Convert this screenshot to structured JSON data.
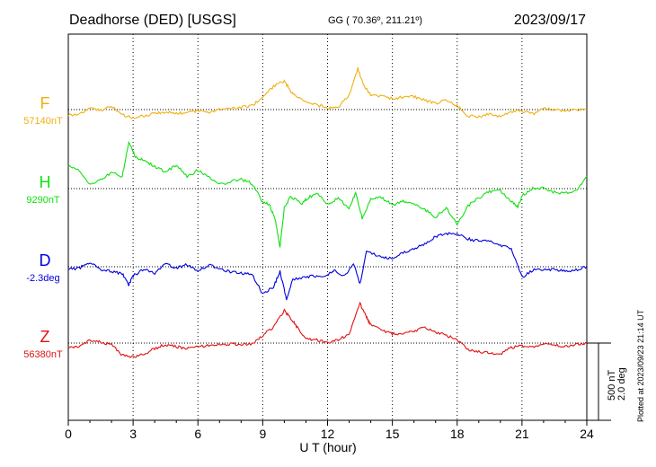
{
  "header": {
    "station": "Deadhorse (DED)  [USGS]",
    "coords": "GG ( 70.36º, 211.21º)",
    "date": "2023/09/17"
  },
  "plotted_note": "Plotted at 2023/09/23 21:14 UT",
  "scale_bar": {
    "value_nt": "500 nT",
    "value_deg": "2.0 deg"
  },
  "chart_data": {
    "type": "line",
    "xlabel": "U T (hour)",
    "xlim": [
      0,
      24
    ],
    "xticks": [
      "0",
      "3",
      "6",
      "9",
      "12",
      "15",
      "18",
      "21",
      "24"
    ],
    "grid": true,
    "colors": {
      "F": "#f0b010",
      "H": "#10e010",
      "D": "#0000e0",
      "Z": "#e01010"
    },
    "series": [
      {
        "name": "F",
        "baseline_label": "57140nT",
        "points": [
          [
            0,
            -35
          ],
          [
            0.5,
            -30
          ],
          [
            1,
            10
          ],
          [
            1.5,
            -5
          ],
          [
            2,
            20
          ],
          [
            2.5,
            -35
          ],
          [
            3,
            -55
          ],
          [
            3.5,
            -40
          ],
          [
            4,
            -25
          ],
          [
            4.5,
            -15
          ],
          [
            5,
            -25
          ],
          [
            5.5,
            -20
          ],
          [
            6,
            -10
          ],
          [
            6.5,
            -15
          ],
          [
            7,
            0
          ],
          [
            7.5,
            5
          ],
          [
            8,
            15
          ],
          [
            8.5,
            25
          ],
          [
            9,
            80
          ],
          [
            9.5,
            150
          ],
          [
            10,
            185
          ],
          [
            10.3,
            120
          ],
          [
            10.5,
            90
          ],
          [
            11,
            45
          ],
          [
            11.5,
            30
          ],
          [
            12,
            10
          ],
          [
            12.5,
            15
          ],
          [
            13,
            95
          ],
          [
            13.4,
            265
          ],
          [
            13.7,
            150
          ],
          [
            14,
            95
          ],
          [
            14.5,
            85
          ],
          [
            15,
            70
          ],
          [
            15.5,
            80
          ],
          [
            16,
            85
          ],
          [
            16.5,
            60
          ],
          [
            17,
            40
          ],
          [
            17.5,
            65
          ],
          [
            18,
            25
          ],
          [
            18.5,
            -40
          ],
          [
            19,
            -45
          ],
          [
            19.5,
            -30
          ],
          [
            20,
            -45
          ],
          [
            20.5,
            -10
          ],
          [
            21,
            -10
          ],
          [
            21.5,
            -30
          ],
          [
            22,
            5
          ],
          [
            22.5,
            0
          ],
          [
            23,
            -5
          ],
          [
            23.5,
            0
          ],
          [
            24,
            0
          ]
        ]
      },
      {
        "name": "H",
        "baseline_label": "9290nT",
        "points": [
          [
            0,
            150
          ],
          [
            0.5,
            120
          ],
          [
            1,
            25
          ],
          [
            1.5,
            60
          ],
          [
            2,
            100
          ],
          [
            2.5,
            80
          ],
          [
            2.8,
            300
          ],
          [
            3.1,
            210
          ],
          [
            3.5,
            180
          ],
          [
            4,
            145
          ],
          [
            4.5,
            105
          ],
          [
            5,
            155
          ],
          [
            5.5,
            75
          ],
          [
            6,
            120
          ],
          [
            6.5,
            75
          ],
          [
            7,
            25
          ],
          [
            7.5,
            45
          ],
          [
            8,
            60
          ],
          [
            8.5,
            35
          ],
          [
            9,
            -90
          ],
          [
            9.3,
            -100
          ],
          [
            9.6,
            -215
          ],
          [
            9.8,
            -380
          ],
          [
            10,
            -120
          ],
          [
            10.3,
            -50
          ],
          [
            10.8,
            -100
          ],
          [
            11,
            -70
          ],
          [
            11.5,
            -25
          ],
          [
            12,
            -105
          ],
          [
            12.5,
            -60
          ],
          [
            13,
            -130
          ],
          [
            13.3,
            -30
          ],
          [
            13.6,
            -190
          ],
          [
            14,
            -70
          ],
          [
            14.5,
            -55
          ],
          [
            15,
            -110
          ],
          [
            15.5,
            -80
          ],
          [
            16,
            -95
          ],
          [
            16.5,
            -135
          ],
          [
            17,
            -185
          ],
          [
            17.5,
            -120
          ],
          [
            18,
            -235
          ],
          [
            18.5,
            -110
          ],
          [
            19,
            -60
          ],
          [
            19.5,
            -20
          ],
          [
            20,
            -15
          ],
          [
            20.5,
            -85
          ],
          [
            20.8,
            -120
          ],
          [
            21,
            -45
          ],
          [
            21.5,
            0
          ],
          [
            22,
            5
          ],
          [
            22.5,
            -25
          ],
          [
            23,
            -30
          ],
          [
            23.5,
            -15
          ],
          [
            24,
            80
          ]
        ]
      },
      {
        "name": "D",
        "baseline_label": "-2.3deg",
        "points": [
          [
            0,
            -15
          ],
          [
            0.5,
            -10
          ],
          [
            1,
            30
          ],
          [
            1.5,
            -20
          ],
          [
            2,
            -30
          ],
          [
            2.5,
            -45
          ],
          [
            2.8,
            -120
          ],
          [
            3,
            -60
          ],
          [
            3.5,
            -15
          ],
          [
            4,
            -40
          ],
          [
            4.5,
            20
          ],
          [
            5,
            -10
          ],
          [
            5.5,
            15
          ],
          [
            6,
            -25
          ],
          [
            6.5,
            10
          ],
          [
            7,
            -10
          ],
          [
            7.5,
            -35
          ],
          [
            8,
            -40
          ],
          [
            8.5,
            -50
          ],
          [
            9,
            -175
          ],
          [
            9.5,
            -130
          ],
          [
            9.8,
            -30
          ],
          [
            10.1,
            -210
          ],
          [
            10.4,
            -80
          ],
          [
            11,
            -65
          ],
          [
            11.5,
            -60
          ],
          [
            12,
            -55
          ],
          [
            12.3,
            -25
          ],
          [
            12.8,
            -60
          ],
          [
            13.2,
            20
          ],
          [
            13.5,
            -110
          ],
          [
            13.8,
            100
          ],
          [
            14.5,
            60
          ],
          [
            15,
            55
          ],
          [
            15.5,
            95
          ],
          [
            16,
            115
          ],
          [
            16.5,
            150
          ],
          [
            17,
            195
          ],
          [
            17.5,
            215
          ],
          [
            18,
            215
          ],
          [
            18.5,
            180
          ],
          [
            19,
            165
          ],
          [
            19.5,
            170
          ],
          [
            20,
            140
          ],
          [
            20.5,
            120
          ],
          [
            21,
            -70
          ],
          [
            21.5,
            -20
          ],
          [
            22,
            -20
          ],
          [
            22.5,
            -15
          ],
          [
            23,
            -30
          ],
          [
            23.5,
            -20
          ],
          [
            24,
            0
          ]
        ]
      },
      {
        "name": "Z",
        "baseline_label": "56380nT",
        "points": [
          [
            0,
            -25
          ],
          [
            0.5,
            -25
          ],
          [
            1,
            20
          ],
          [
            1.5,
            5
          ],
          [
            2,
            -10
          ],
          [
            2.5,
            -80
          ],
          [
            3,
            -90
          ],
          [
            3.5,
            -70
          ],
          [
            4,
            -35
          ],
          [
            4.5,
            -10
          ],
          [
            5,
            -25
          ],
          [
            5.5,
            -35
          ],
          [
            6,
            -25
          ],
          [
            6.5,
            -15
          ],
          [
            7,
            -10
          ],
          [
            7.5,
            -5
          ],
          [
            8,
            -10
          ],
          [
            8.5,
            -5
          ],
          [
            9,
            50
          ],
          [
            9.5,
            105
          ],
          [
            10,
            210
          ],
          [
            10.3,
            160
          ],
          [
            10.6,
            100
          ],
          [
            11,
            30
          ],
          [
            11.5,
            20
          ],
          [
            12,
            0
          ],
          [
            12.5,
            20
          ],
          [
            13,
            60
          ],
          [
            13.5,
            255
          ],
          [
            13.8,
            170
          ],
          [
            14,
            115
          ],
          [
            14.5,
            85
          ],
          [
            15,
            60
          ],
          [
            15.5,
            55
          ],
          [
            16,
            80
          ],
          [
            16.5,
            100
          ],
          [
            17,
            70
          ],
          [
            17.5,
            50
          ],
          [
            18,
            20
          ],
          [
            18.5,
            -40
          ],
          [
            19,
            -55
          ],
          [
            19.5,
            -65
          ],
          [
            20,
            -70
          ],
          [
            20.5,
            -30
          ],
          [
            21,
            -20
          ],
          [
            21.5,
            -30
          ],
          [
            22,
            -10
          ],
          [
            22.5,
            -15
          ],
          [
            23,
            -20
          ],
          [
            23.5,
            -10
          ],
          [
            24,
            0
          ]
        ]
      }
    ]
  }
}
